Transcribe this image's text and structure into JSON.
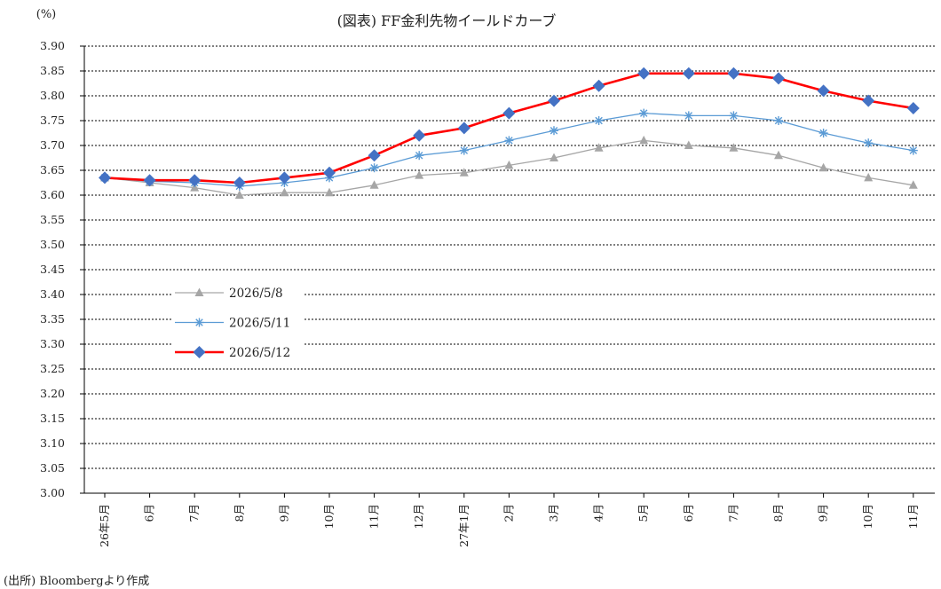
{
  "chart_data": {
    "type": "line",
    "title": "(図表) FF金利先物イールドカーブ",
    "unit_label": "(%)",
    "ylim": [
      3.0,
      3.9
    ],
    "y_step": 0.05,
    "y_tick_labels": [
      "3.00",
      "3.05",
      "3.10",
      "3.15",
      "3.20",
      "3.25",
      "3.30",
      "3.35",
      "3.40",
      "3.45",
      "3.50",
      "3.55",
      "3.60",
      "3.65",
      "3.70",
      "3.75",
      "3.80",
      "3.85",
      "3.90"
    ],
    "grid": true,
    "legend_position": "lower-left",
    "categories": [
      "26年5月",
      "6月",
      "7月",
      "8月",
      "9月",
      "10月",
      "11月",
      "12月",
      "27年1月",
      "2月",
      "3月",
      "4月",
      "5月",
      "6月",
      "7月",
      "8月",
      "9月",
      "10月",
      "11月"
    ],
    "series": [
      {
        "name": "2026/5/8",
        "color": "#a6a6a6",
        "marker": "triangle",
        "values": [
          3.635,
          3.625,
          3.615,
          3.6,
          3.605,
          3.605,
          3.62,
          3.64,
          3.645,
          3.66,
          3.675,
          3.695,
          3.71,
          3.7,
          3.695,
          3.68,
          3.655,
          3.635,
          3.62
        ]
      },
      {
        "name": "2026/5/11",
        "color": "#5b9bd5",
        "marker": "asterisk",
        "values": [
          3.635,
          3.628,
          3.625,
          3.618,
          3.625,
          3.635,
          3.655,
          3.68,
          3.69,
          3.71,
          3.73,
          3.75,
          3.765,
          3.76,
          3.76,
          3.75,
          3.725,
          3.705,
          3.69
        ]
      },
      {
        "name": "2026/5/12",
        "color": "#ff0000",
        "marker_color": "#4472c4",
        "marker": "diamond",
        "values": [
          3.635,
          3.63,
          3.63,
          3.625,
          3.635,
          3.645,
          3.68,
          3.72,
          3.735,
          3.765,
          3.79,
          3.82,
          3.845,
          3.845,
          3.845,
          3.835,
          3.81,
          3.79,
          3.775
        ]
      }
    ]
  },
  "source_note": "(出所) Bloombergより作成"
}
